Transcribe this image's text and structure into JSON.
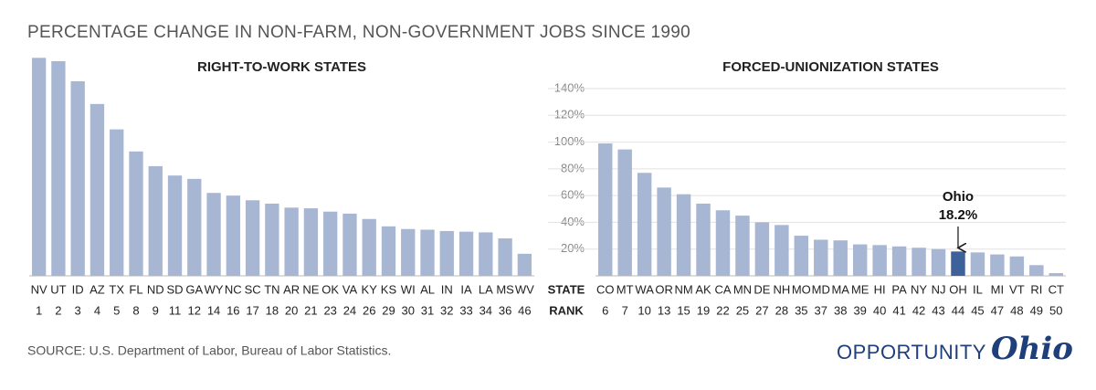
{
  "title": "PERCENTAGE CHANGE IN NON-FARM, NON-GOVERNMENT JOBS SINCE 1990",
  "source": "SOURCE: U.S. Department of Labor, Bureau of Labor Statistics.",
  "logo": {
    "word": "OPPORTUNITY",
    "script": "Ohio"
  },
  "row_labels": [
    "STATE",
    "RANK"
  ],
  "chart_data": [
    {
      "type": "bar",
      "title": "RIGHT-TO-WORK STATES",
      "color": "#a7b6d3",
      "categories": [
        "NV",
        "UT",
        "ID",
        "AZ",
        "TX",
        "FL",
        "ND",
        "SD",
        "GA",
        "WY",
        "NC",
        "SC",
        "TN",
        "AR",
        "NE",
        "OK",
        "VA",
        "KY",
        "KS",
        "WI",
        "AL",
        "IN",
        "IA",
        "LA",
        "MS",
        "WV"
      ],
      "ranks": [
        1,
        2,
        3,
        4,
        5,
        8,
        9,
        11,
        12,
        14,
        16,
        17,
        18,
        20,
        21,
        23,
        24,
        26,
        29,
        30,
        31,
        32,
        33,
        34,
        36,
        46
      ],
      "values": [
        163,
        160.5,
        145.5,
        128.5,
        109.5,
        93,
        82,
        75,
        72.5,
        62,
        60,
        56.5,
        54,
        51,
        50.5,
        48,
        46.5,
        42.5,
        37,
        35,
        34.5,
        33.5,
        33,
        32.5,
        28,
        16.5
      ],
      "ylim": [
        0,
        165
      ]
    },
    {
      "type": "bar",
      "title": "FORCED-UNIONIZATION STATES",
      "color": "#a7b6d3",
      "categories": [
        "CO",
        "MT",
        "WA",
        "OR",
        "NM",
        "AK",
        "CA",
        "MN",
        "DE",
        "NH",
        "MO",
        "MD",
        "MA",
        "ME",
        "HI",
        "PA",
        "NY",
        "NJ",
        "OH",
        "IL",
        "MI",
        "VT",
        "RI",
        "CT"
      ],
      "ranks": [
        6,
        7,
        10,
        13,
        15,
        19,
        22,
        25,
        27,
        28,
        35,
        37,
        38,
        39,
        40,
        41,
        42,
        43,
        44,
        45,
        47,
        48,
        49,
        50
      ],
      "values": [
        99,
        94.5,
        77,
        66,
        61,
        54,
        49,
        45,
        40,
        38,
        30,
        27,
        26.5,
        23.5,
        23,
        22,
        21,
        20,
        18.2,
        17.5,
        16,
        14.5,
        8,
        2
      ],
      "value_labels": [
        null,
        null,
        null,
        null,
        null,
        null,
        null,
        null,
        null,
        null,
        null,
        null,
        null,
        null,
        null,
        null,
        null,
        null,
        "18.2%",
        null,
        null,
        null,
        null,
        null
      ],
      "highlight": {
        "category": "OH",
        "label": "Ohio",
        "color": "#3d6199"
      },
      "ylim": [
        0,
        140
      ],
      "yticks": [
        {
          "value": 20,
          "label": "20%"
        },
        {
          "value": 40,
          "label": "40%"
        },
        {
          "value": 60,
          "label": "60%"
        },
        {
          "value": 80,
          "label": "80%"
        },
        {
          "value": 100,
          "label": "100%"
        },
        {
          "value": 120,
          "label": "120%"
        },
        {
          "value": 140,
          "label": "140%"
        }
      ],
      "grid": true
    }
  ]
}
